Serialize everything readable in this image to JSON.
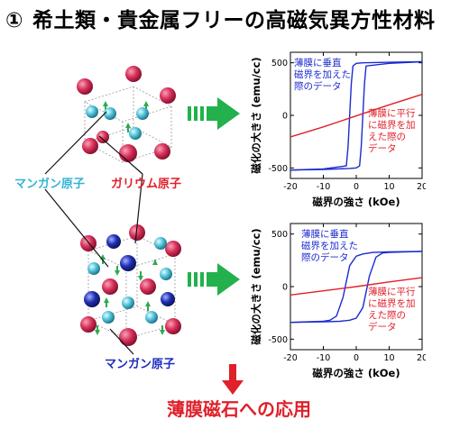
{
  "title": {
    "number": "①",
    "text": "希土類・貴金属フリーの高磁気異方性材料"
  },
  "labels": {
    "mn_upper": "マンガン原子",
    "ga_upper": "ガリウム原子",
    "mn_lower": "マンガン原子"
  },
  "footer": {
    "text": "薄膜磁石への応用"
  },
  "colors": {
    "perp": "#1c2bd0",
    "parallel": "#e0202a",
    "arrow_green": "#22b14c",
    "mn_cyan": "#4fc3d9",
    "ga_red": "#d8305a",
    "mn_blue": "#1f2fb5"
  },
  "chart_data": [
    {
      "type": "line",
      "xlabel": "磁界の強さ (kOe)",
      "ylabel": "磁化の大きさ (emu/cc)",
      "xlim": [
        -20,
        20
      ],
      "ylim": [
        -600,
        600
      ],
      "xticks": [
        "-20",
        "-10",
        "0",
        "10",
        "20"
      ],
      "yticks": [
        "-500",
        "0",
        "500"
      ],
      "annotations": {
        "perp": "薄膜に垂直\n磁界を加えた\n際のデータ",
        "parallel": "薄膜に平行\nに磁界を加\nえた際の\nデータ"
      },
      "series": [
        {
          "key": "perp_up",
          "color_key": "perp",
          "x": [
            -20,
            -10,
            -2,
            0,
            1,
            1.5,
            2,
            2.5,
            3,
            10,
            20
          ],
          "y": [
            -520,
            -515,
            -505,
            -500,
            -480,
            -300,
            0,
            300,
            470,
            495,
            510
          ]
        },
        {
          "key": "perp_down",
          "color_key": "perp",
          "x": [
            20,
            10,
            2,
            0,
            -1,
            -1.5,
            -2,
            -2.5,
            -3,
            -10,
            -20
          ],
          "y": [
            510,
            505,
            500,
            495,
            470,
            300,
            0,
            -300,
            -480,
            -510,
            -520
          ]
        },
        {
          "key": "parallel",
          "color_key": "parallel",
          "x": [
            -20,
            -10,
            0,
            10,
            20
          ],
          "y": [
            -205,
            -110,
            -5,
            100,
            200
          ]
        }
      ]
    },
    {
      "type": "line",
      "xlabel": "磁界の強さ (kOe)",
      "ylabel": "磁化の大きさ (emu/cc)",
      "xlim": [
        -20,
        20
      ],
      "ylim": [
        -600,
        600
      ],
      "xticks": [
        "-20",
        "-10",
        "0",
        "10",
        "20"
      ],
      "yticks": [
        "-500",
        "0",
        "500"
      ],
      "annotations": {
        "perp": "薄膜に垂直\n磁界を加えた\n際のデータ",
        "parallel": "薄膜に平行\nに磁界を加\nえた際の\nデータ"
      },
      "series": [
        {
          "key": "perp_up",
          "color_key": "perp",
          "x": [
            -20,
            -10,
            -5,
            -2,
            0,
            2,
            4,
            6,
            8,
            10,
            20
          ],
          "y": [
            -340,
            -335,
            -330,
            -320,
            -300,
            -200,
            100,
            280,
            320,
            325,
            335
          ]
        },
        {
          "key": "perp_down",
          "color_key": "perp",
          "x": [
            20,
            10,
            5,
            2,
            0,
            -2,
            -4,
            -6,
            -8,
            -10,
            -20
          ],
          "y": [
            335,
            330,
            325,
            310,
            290,
            200,
            -100,
            -280,
            -320,
            -330,
            -340
          ]
        },
        {
          "key": "parallel",
          "color_key": "parallel",
          "x": [
            -20,
            -10,
            0,
            10,
            20
          ],
          "y": [
            -80,
            -40,
            0,
            45,
            85
          ]
        }
      ]
    }
  ]
}
